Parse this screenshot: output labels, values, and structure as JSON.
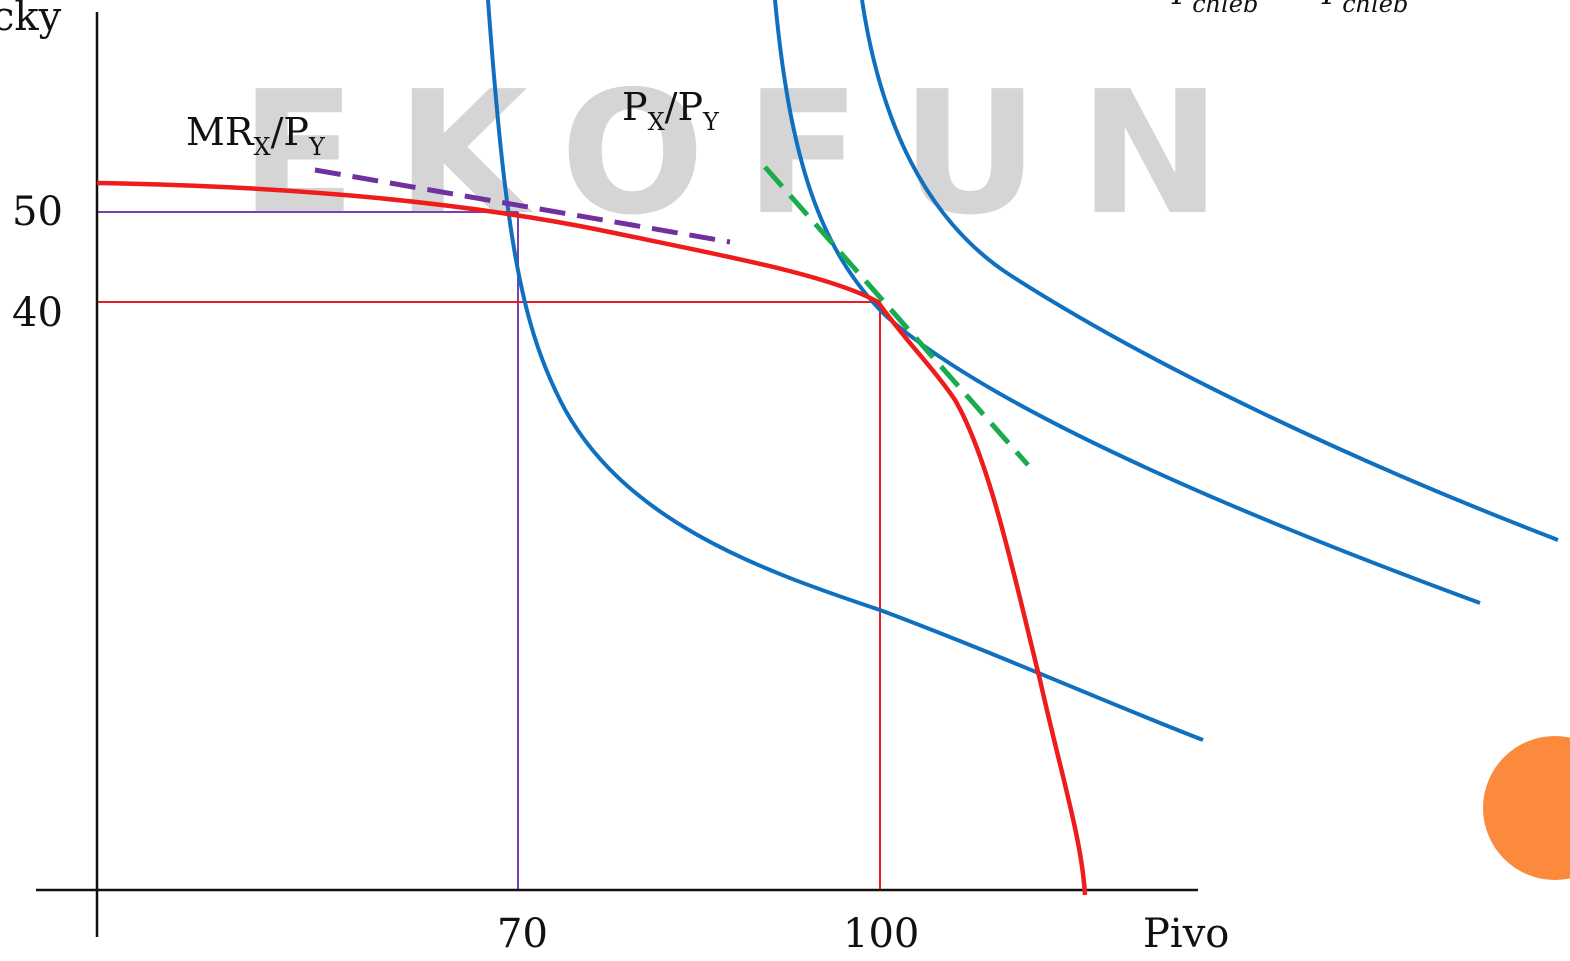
{
  "chart_data": {
    "type": "diagram",
    "labels": {
      "y_axis": "cky",
      "x_axis": "Pivo",
      "mr_label_main": "MR",
      "mr_label_sub": "X",
      "mr_label_sep": "/P",
      "mr_label_sub2": "Y",
      "px_label_main": "P",
      "px_label_sub": "X",
      "px_label_sep": "/P",
      "px_label_sub2": "Y",
      "top_formula_a": "P",
      "top_formula_a_sub": "chleb",
      "top_formula_b": "P",
      "top_formula_b_sub": "chleb"
    },
    "x_ticks": [
      "70",
      "100"
    ],
    "y_ticks": [
      "50",
      "40"
    ],
    "points": [
      {
        "x": 70,
        "y": 50,
        "guide_color": "#7a3fb0"
      },
      {
        "x": 100,
        "y": 40,
        "guide_color": "#ee1c1c"
      }
    ],
    "watermark": "EKOFUN",
    "colors": {
      "curve_red": "#ee1c1c",
      "indifference_blue": "#1070c0",
      "mr_dashed_purple": "#7030a0",
      "price_dashed_green": "#1aab4c",
      "decor_circle": "#fb8a3c",
      "axis": "#111111"
    }
  }
}
